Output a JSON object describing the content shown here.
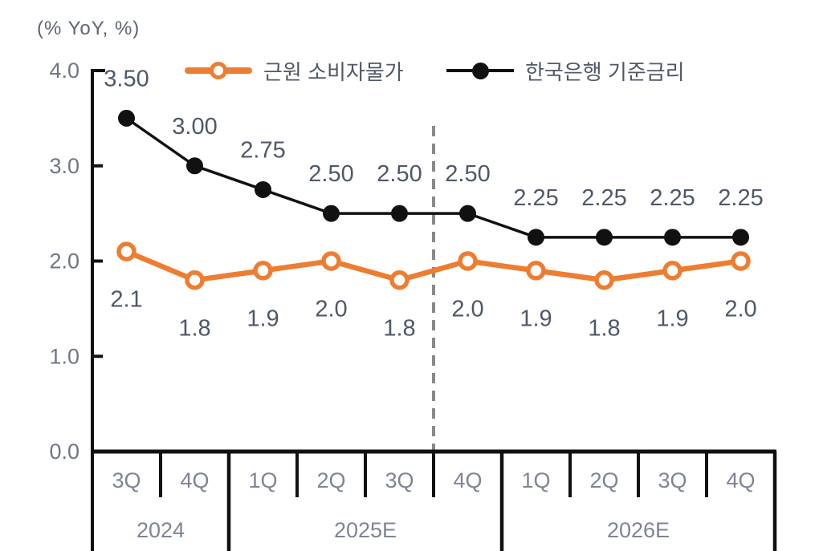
{
  "title": "(% YoY, %)",
  "legend": [
    {
      "label": "근원 소비자물가"
    },
    {
      "label": "한국은행 기준금리"
    }
  ],
  "colors": {
    "core_cpi": "#ED7D31",
    "base_rate": "#111111",
    "axis": "#111111",
    "data_label": "#4f5868",
    "ytick_label": "#6e7685",
    "xtick_label": "#7d8594",
    "forecast_divider": "#898989",
    "background": "#FFFFFF"
  },
  "chart_data": {
    "type": "line",
    "title": "",
    "ylabel": "(% YoY, %)",
    "xlabel": "",
    "ylim": [
      0.0,
      4.0
    ],
    "yticks": [
      {
        "value": 4.0,
        "label": "4.0"
      },
      {
        "value": 3.0,
        "label": "3.0"
      },
      {
        "value": 2.0,
        "label": "2.0"
      },
      {
        "value": 1.0,
        "label": "1.0"
      },
      {
        "value": 0.0,
        "label": "0.0"
      }
    ],
    "grid": false,
    "legend_position": "top",
    "categories": [
      "3Q",
      "4Q",
      "1Q",
      "2Q",
      "3Q",
      "4Q",
      "1Q",
      "2Q",
      "3Q",
      "4Q"
    ],
    "year_groups": [
      {
        "label": "2024",
        "span": 2
      },
      {
        "label": "2025E",
        "span": 4
      },
      {
        "label": "2026E",
        "span": 4
      }
    ],
    "forecast_divider_after_index": 4,
    "series": [
      {
        "name": "근원 소비자물가",
        "color": "#ED7D31",
        "marker": "open-circle",
        "label_position": "below",
        "values": [
          2.1,
          1.8,
          1.9,
          2.0,
          1.8,
          2.0,
          1.9,
          1.8,
          1.9,
          2.0
        ],
        "labels": [
          "2.1",
          "1.8",
          "1.9",
          "2.0",
          "1.8",
          "2.0",
          "1.9",
          "1.8",
          "1.9",
          "2.0"
        ]
      },
      {
        "name": "한국은행 기준금리",
        "color": "#111111",
        "marker": "filled-circle",
        "label_position": "above",
        "values": [
          3.5,
          3.0,
          2.75,
          2.5,
          2.5,
          2.5,
          2.25,
          2.25,
          2.25,
          2.25
        ],
        "labels": [
          "3.50",
          "3.00",
          "2.75",
          "2.50",
          "2.50",
          "2.50",
          "2.25",
          "2.25",
          "2.25",
          "2.25"
        ]
      }
    ]
  }
}
